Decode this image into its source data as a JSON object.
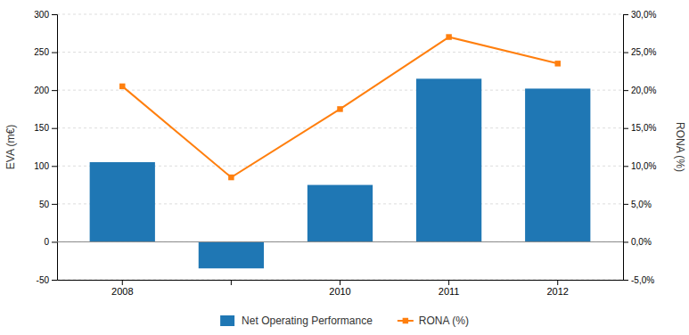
{
  "chart_data": {
    "type": "bar",
    "categories": [
      "2008",
      null,
      "2010",
      "2011",
      "2012"
    ],
    "series": [
      {
        "name": "Net Operating Performance",
        "type": "bar",
        "values": [
          105,
          -35,
          75,
          215,
          202
        ]
      },
      {
        "name": "RONA (%)",
        "type": "line",
        "axis": "y2",
        "marker": "square",
        "values": [
          0.205,
          0.085,
          0.175,
          0.27,
          0.235
        ]
      }
    ],
    "y_label": "EVA (m€)",
    "y2_label": "RONA (%)",
    "ylim": [
      -50,
      300
    ],
    "yticks": [
      -50,
      0,
      50,
      100,
      150,
      200,
      250,
      300
    ],
    "y2lim": [
      -0.05,
      0.3
    ],
    "y2ticks": [
      {
        "value": -0.05,
        "label": "-5,0%"
      },
      {
        "value": 0.0,
        "label": "0,0%"
      },
      {
        "value": 0.05,
        "label": "5,0%"
      },
      {
        "value": 0.1,
        "label": "10,0%"
      },
      {
        "value": 0.15,
        "label": "15,0%"
      },
      {
        "value": 0.2,
        "label": "20,0%"
      },
      {
        "value": 0.25,
        "label": "25,0%"
      },
      {
        "value": 0.3,
        "label": "30,0%"
      }
    ],
    "grid": true,
    "legend": "bottom"
  }
}
